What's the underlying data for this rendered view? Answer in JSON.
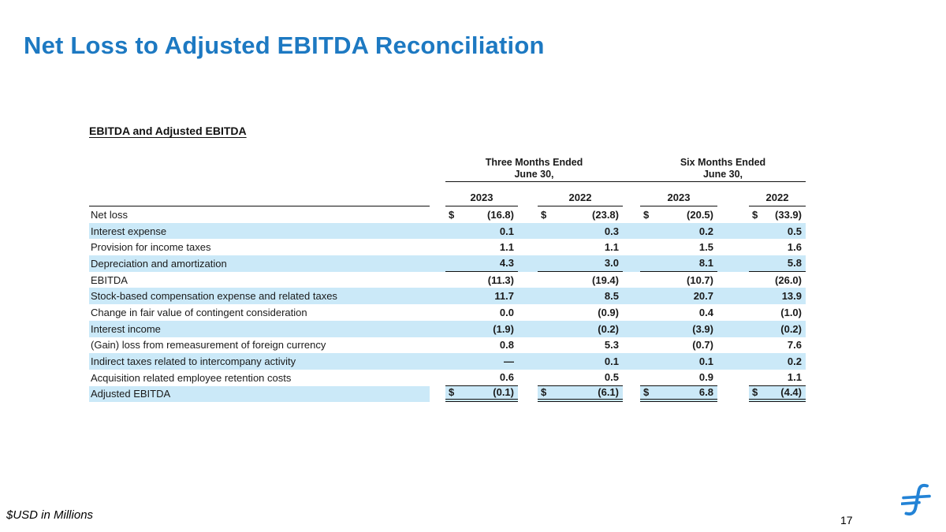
{
  "slide": {
    "title": "Net Loss to Adjusted EBITDA Reconciliation",
    "footnote": "$USD in Millions",
    "page_number": "17"
  },
  "icons": {
    "logo": "stylized-f-logo"
  },
  "colors": {
    "title_blue": "#1d79c2",
    "stripe_blue": "#cbe9f8",
    "logo_blue": "#2383d6",
    "text": "#1a1a1a"
  },
  "table": {
    "heading": "EBITDA and Adjusted EBITDA",
    "currency_symbol": "$",
    "col_groups": [
      {
        "line1": "Three Months Ended",
        "line2": "June 30,"
      },
      {
        "line1": "Six Months Ended",
        "line2": "June 30,"
      }
    ],
    "year_headers": [
      "2023",
      "2022",
      "2023",
      "2022"
    ],
    "rows": [
      {
        "label": "Net loss",
        "dollar": true,
        "shaded": false,
        "underline": "none",
        "values": [
          "(16.8)",
          "(23.8)",
          "(20.5)",
          "(33.9)"
        ]
      },
      {
        "label": "Interest expense",
        "dollar": false,
        "shaded": true,
        "underline": "none",
        "values": [
          "0.1",
          "0.3",
          "0.2",
          "0.5"
        ]
      },
      {
        "label": "Provision for income taxes",
        "dollar": false,
        "shaded": false,
        "underline": "none",
        "values": [
          "1.1",
          "1.1",
          "1.5",
          "1.6"
        ]
      },
      {
        "label": "Depreciation and amortization",
        "dollar": false,
        "shaded": true,
        "underline": "single",
        "values": [
          "4.3",
          "3.0",
          "8.1",
          "5.8"
        ]
      },
      {
        "label": "EBITDA",
        "dollar": false,
        "shaded": false,
        "underline": "none",
        "values": [
          "(11.3)",
          "(19.4)",
          "(10.7)",
          "(26.0)"
        ]
      },
      {
        "label": "Stock-based compensation expense and related taxes",
        "dollar": false,
        "shaded": true,
        "underline": "none",
        "values": [
          "11.7",
          "8.5",
          "20.7",
          "13.9"
        ]
      },
      {
        "label": "Change in fair value of contingent consideration",
        "dollar": false,
        "shaded": false,
        "underline": "none",
        "values": [
          "0.0",
          "(0.9)",
          "0.4",
          "(1.0)"
        ]
      },
      {
        "label": "Interest income",
        "dollar": false,
        "shaded": true,
        "underline": "none",
        "values": [
          "(1.9)",
          "(0.2)",
          "(3.9)",
          "(0.2)"
        ]
      },
      {
        "label": "(Gain) loss from remeasurement of foreign currency",
        "dollar": false,
        "shaded": false,
        "underline": "none",
        "values": [
          "0.8",
          "5.3",
          "(0.7)",
          "7.6"
        ]
      },
      {
        "label": "Indirect taxes related to intercompany activity",
        "dollar": false,
        "shaded": true,
        "underline": "none",
        "values": [
          "—",
          "0.1",
          "0.1",
          "0.2"
        ]
      },
      {
        "label": "Acquisition related employee retention costs",
        "dollar": false,
        "shaded": false,
        "underline": "single",
        "values": [
          "0.6",
          "0.5",
          "0.9",
          "1.1"
        ]
      },
      {
        "label": "Adjusted EBITDA",
        "dollar": true,
        "shaded": true,
        "underline": "double",
        "values": [
          "(0.1)",
          "(6.1)",
          "6.8",
          "(4.4)"
        ]
      }
    ]
  }
}
